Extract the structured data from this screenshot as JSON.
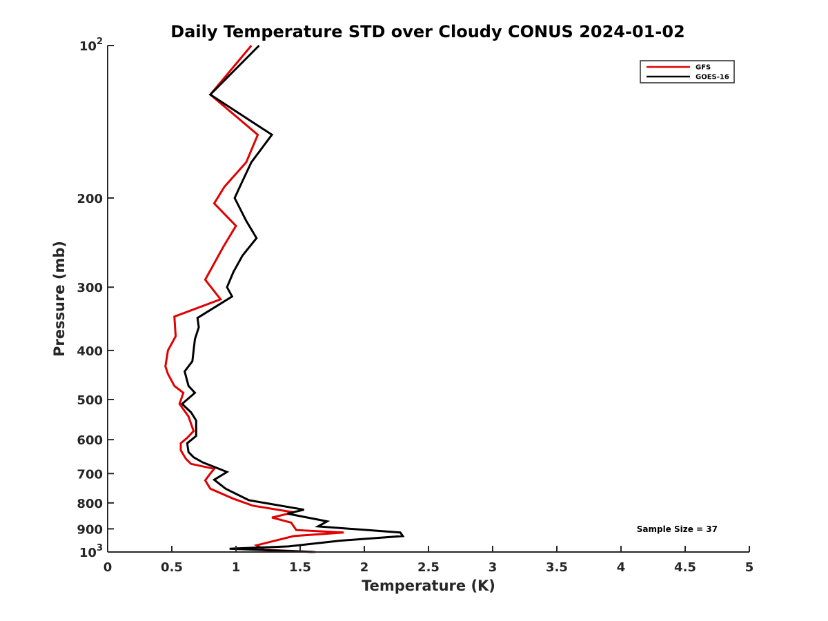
{
  "chart_data": {
    "type": "line",
    "title": "Daily Temperature STD over Cloudy CONUS 2024-01-02",
    "xlabel": "Temperature (K)",
    "ylabel": "Pressure (mb)",
    "xlim": [
      0,
      5
    ],
    "ylim": [
      100,
      1000
    ],
    "y_scale": "log",
    "y_reversed": true,
    "x_ticks": [
      "0",
      "0.5",
      "1",
      "1.5",
      "2",
      "2.5",
      "3",
      "3.5",
      "4",
      "4.5",
      "5"
    ],
    "y_ticks": [
      {
        "value": 100,
        "base": "10",
        "sup": "2"
      },
      {
        "value": 200,
        "base": "200",
        "sup": ""
      },
      {
        "value": 300,
        "base": "300",
        "sup": ""
      },
      {
        "value": 400,
        "base": "400",
        "sup": ""
      },
      {
        "value": 500,
        "base": "500",
        "sup": ""
      },
      {
        "value": 600,
        "base": "600",
        "sup": ""
      },
      {
        "value": 700,
        "base": "700",
        "sup": ""
      },
      {
        "value": 800,
        "base": "800",
        "sup": ""
      },
      {
        "value": 900,
        "base": "900",
        "sup": ""
      },
      {
        "value": 1000,
        "base": "10",
        "sup": "3"
      }
    ],
    "grid": false,
    "legend_position": "top-right",
    "annotation": "Sample Size = 37",
    "series": [
      {
        "name": "GFS",
        "color": "#e00000",
        "points": [
          [
            1.12,
            100
          ],
          [
            0.8,
            125
          ],
          [
            1.17,
            150
          ],
          [
            1.08,
            170
          ],
          [
            0.91,
            190
          ],
          [
            0.83,
            205
          ],
          [
            1.0,
            227
          ],
          [
            0.9,
            250
          ],
          [
            0.81,
            275
          ],
          [
            0.76,
            290
          ],
          [
            0.88,
            317
          ],
          [
            0.52,
            343
          ],
          [
            0.53,
            375
          ],
          [
            0.47,
            400
          ],
          [
            0.45,
            430
          ],
          [
            0.47,
            445
          ],
          [
            0.52,
            470
          ],
          [
            0.59,
            485
          ],
          [
            0.56,
            510
          ],
          [
            0.63,
            540
          ],
          [
            0.67,
            577
          ],
          [
            0.62,
            595
          ],
          [
            0.57,
            610
          ],
          [
            0.57,
            630
          ],
          [
            0.61,
            655
          ],
          [
            0.65,
            670
          ],
          [
            0.83,
            685
          ],
          [
            0.8,
            700
          ],
          [
            0.76,
            722
          ],
          [
            0.8,
            750
          ],
          [
            0.98,
            785
          ],
          [
            1.13,
            810
          ],
          [
            1.45,
            835
          ],
          [
            1.28,
            855
          ],
          [
            1.43,
            875
          ],
          [
            1.47,
            905
          ],
          [
            1.84,
            915
          ],
          [
            1.45,
            930
          ],
          [
            1.16,
            970
          ],
          [
            1.22,
            990
          ],
          [
            1.62,
            1000
          ]
        ]
      },
      {
        "name": "GOES-16",
        "color": "#000000",
        "points": [
          [
            1.18,
            100
          ],
          [
            0.8,
            125
          ],
          [
            1.28,
            150
          ],
          [
            1.12,
            170
          ],
          [
            1.03,
            190
          ],
          [
            0.99,
            200
          ],
          [
            1.08,
            222
          ],
          [
            1.16,
            240
          ],
          [
            1.05,
            260
          ],
          [
            0.98,
            280
          ],
          [
            0.93,
            300
          ],
          [
            0.97,
            313
          ],
          [
            0.7,
            345
          ],
          [
            0.71,
            360
          ],
          [
            0.68,
            380
          ],
          [
            0.66,
            420
          ],
          [
            0.6,
            440
          ],
          [
            0.63,
            470
          ],
          [
            0.68,
            485
          ],
          [
            0.58,
            510
          ],
          [
            0.65,
            530
          ],
          [
            0.69,
            550
          ],
          [
            0.69,
            590
          ],
          [
            0.62,
            610
          ],
          [
            0.63,
            635
          ],
          [
            0.67,
            650
          ],
          [
            0.74,
            665
          ],
          [
            0.93,
            695
          ],
          [
            0.83,
            720
          ],
          [
            0.92,
            750
          ],
          [
            1.1,
            790
          ],
          [
            1.53,
            825
          ],
          [
            1.4,
            840
          ],
          [
            1.71,
            870
          ],
          [
            1.64,
            890
          ],
          [
            2.28,
            915
          ],
          [
            2.3,
            930
          ],
          [
            1.81,
            950
          ],
          [
            1.41,
            975
          ],
          [
            0.95,
            985
          ],
          [
            1.6,
            1000
          ]
        ]
      }
    ]
  }
}
